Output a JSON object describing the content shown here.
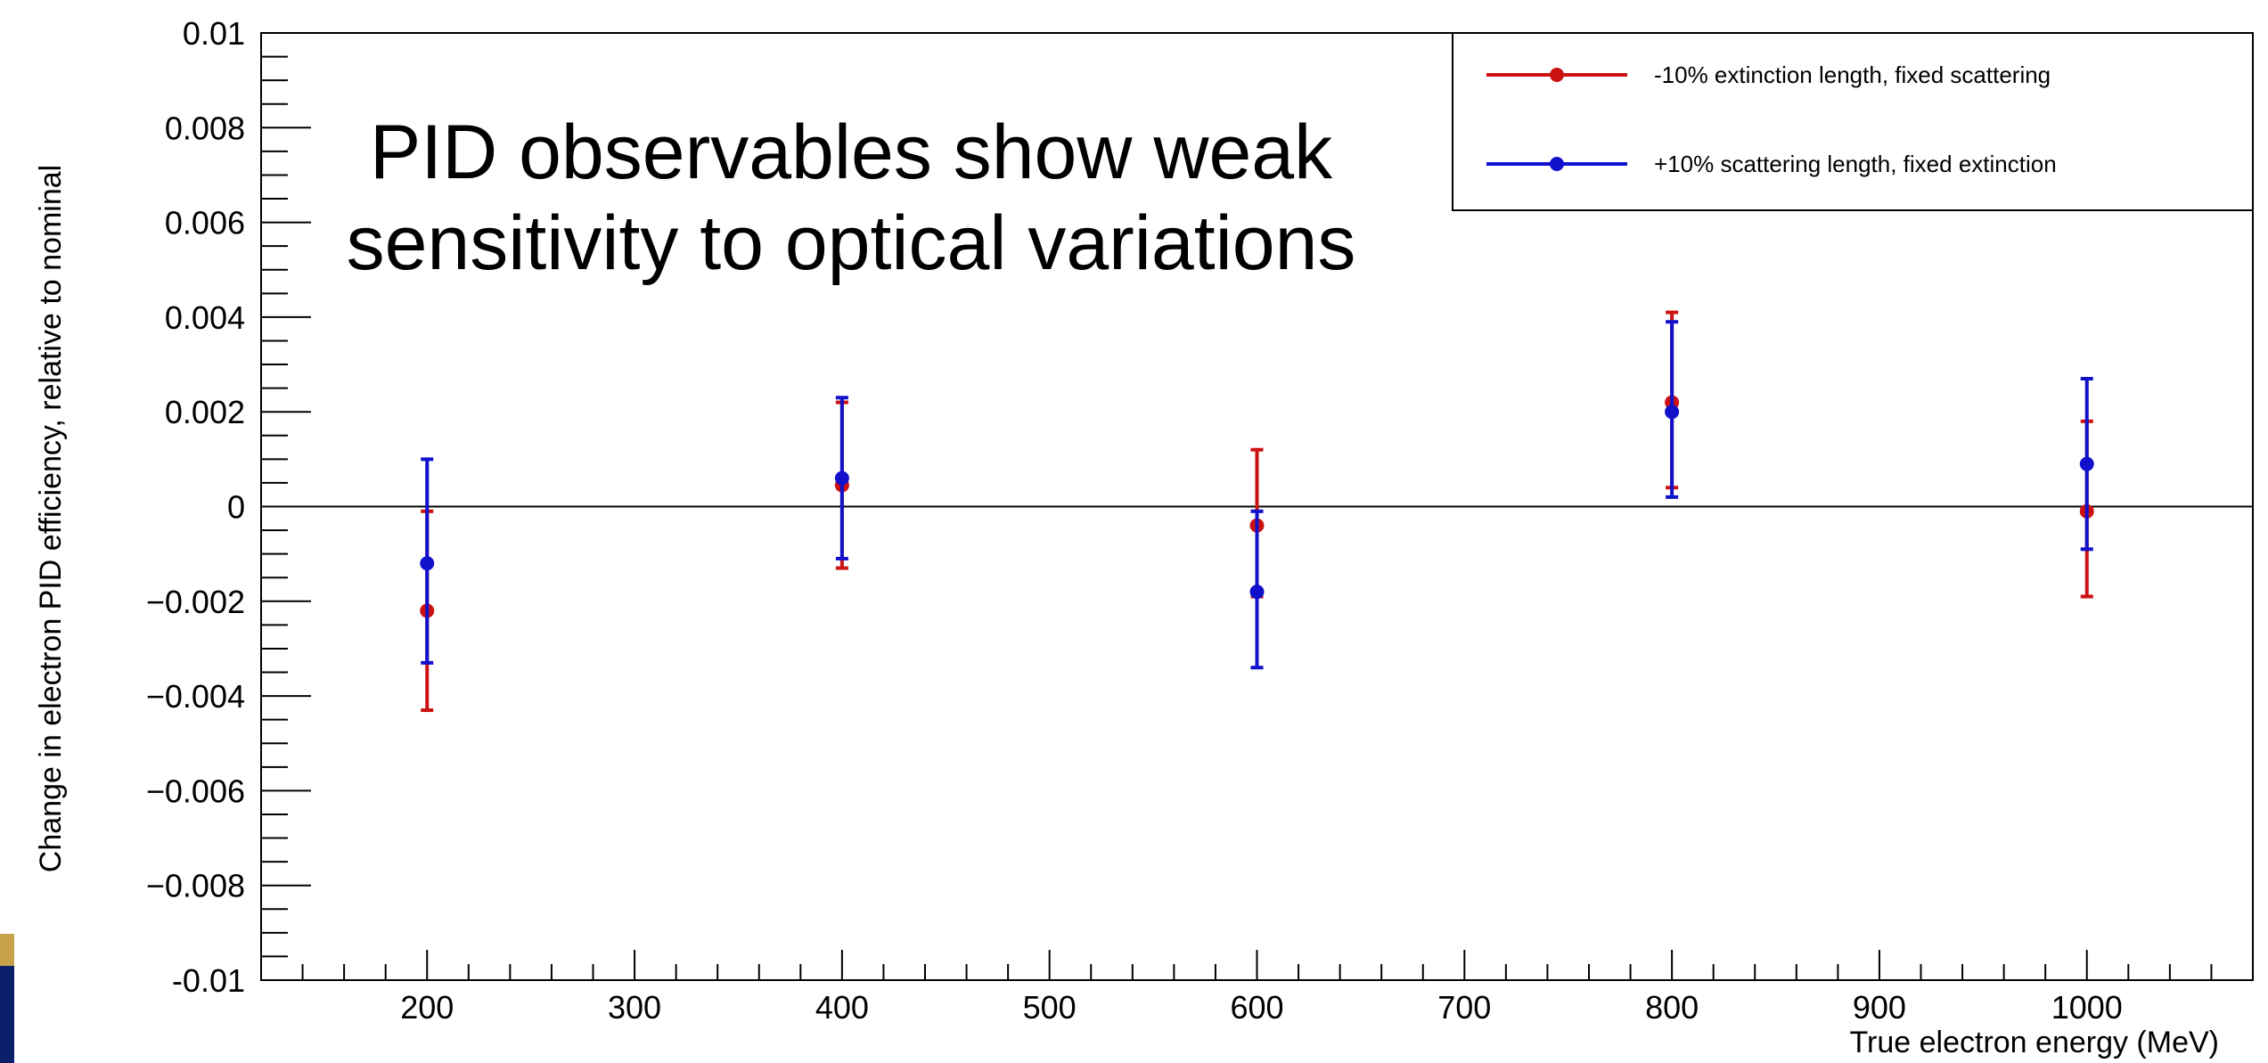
{
  "chart_data": {
    "type": "scatter",
    "annotation_lines": [
      "PID observables show weak",
      "sensitivity to optical variations"
    ],
    "xlabel": "True electron energy (MeV)",
    "ylabel": "Change in electron PID efficiency, relative to nominal",
    "xlim": [
      120,
      1080
    ],
    "ylim": [
      -0.01,
      0.01
    ],
    "x_ticks": [
      200,
      300,
      400,
      500,
      600,
      700,
      800,
      900,
      1000
    ],
    "x_tick_labels": [
      "200",
      "300",
      "400",
      "500",
      "600",
      "700",
      "800",
      "900",
      "1000"
    ],
    "y_ticks": [
      0.01,
      0.008,
      0.006,
      0.004,
      0.002,
      0,
      -0.002,
      -0.004,
      -0.006,
      -0.008,
      -0.01
    ],
    "y_tick_labels": [
      "0.01",
      "0.008",
      "0.006",
      "0.004",
      "0.002",
      "0",
      "−0.002",
      "−0.004",
      "−0.006",
      "−0.008",
      "-0.01"
    ],
    "reference_line_y": 0,
    "grid": false,
    "legend_position": "top-right",
    "series": [
      {
        "name": "-10% extinction length, fixed scattering",
        "color": "#cc1111",
        "x": [
          200,
          400,
          600,
          800,
          1000
        ],
        "y": [
          -0.0022,
          0.00045,
          -0.0004,
          0.0022,
          -0.0001
        ],
        "err_low": [
          -0.0043,
          -0.0013,
          -0.0019,
          0.0004,
          -0.0019
        ],
        "err_high": [
          -0.0001,
          0.0022,
          0.0012,
          0.0041,
          0.0018
        ]
      },
      {
        "name": "+10% scattering length, fixed extinction",
        "color": "#1111cc",
        "x": [
          200,
          400,
          600,
          800,
          1000
        ],
        "y": [
          -0.0012,
          0.0006,
          -0.0018,
          0.002,
          0.0009
        ],
        "err_low": [
          -0.0033,
          -0.0011,
          -0.0034,
          0.0002,
          -0.0009
        ],
        "err_high": [
          0.001,
          0.0023,
          -0.0001,
          0.0039,
          0.0027
        ]
      }
    ]
  },
  "decor": {
    "accent_gold": "#c8a24a",
    "accent_navy": "#0b1f6b"
  }
}
